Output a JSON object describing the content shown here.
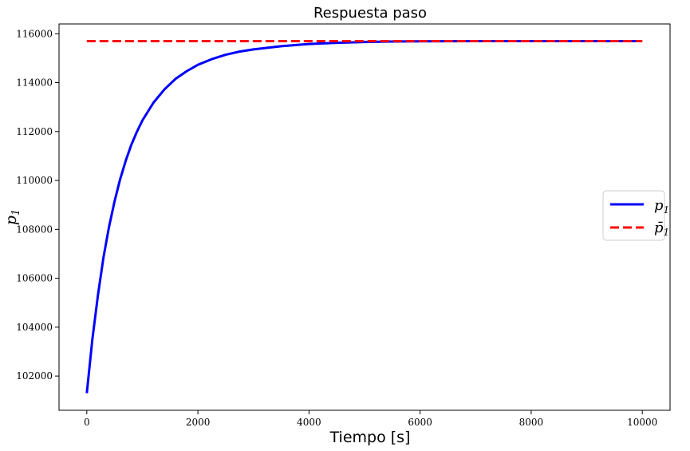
{
  "chart_data": {
    "type": "line",
    "title": "Respuesta paso",
    "xlabel": "Tiempo [s]",
    "ylabel": "p",
    "ylabel_sub": "1",
    "xlim": [
      -500,
      10500
    ],
    "ylim": [
      100600,
      116400
    ],
    "x_ticks": [
      0,
      2000,
      4000,
      6000,
      8000,
      10000
    ],
    "y_ticks": [
      102000,
      104000,
      106000,
      108000,
      110000,
      112000,
      114000,
      116000
    ],
    "legend_position": "center-right",
    "series": [
      {
        "name": "p",
        "name_sub": "1",
        "color": "#0000ff",
        "style": "solid",
        "x": [
          0,
          100,
          200,
          300,
          400,
          500,
          600,
          700,
          800,
          900,
          1000,
          1200,
          1400,
          1600,
          1800,
          2000,
          2250,
          2500,
          2750,
          3000,
          3500,
          4000,
          4500,
          5000,
          5500,
          6000,
          7000,
          8000,
          9000,
          10000
        ],
        "y": [
          101300,
          103500,
          105300,
          106850,
          108100,
          109150,
          110050,
          110800,
          111450,
          111980,
          112450,
          113180,
          113730,
          114160,
          114470,
          114730,
          114960,
          115140,
          115270,
          115360,
          115490,
          115580,
          115630,
          115660,
          115680,
          115690,
          115700,
          115700,
          115700,
          115700
        ]
      },
      {
        "name": "p̄",
        "name_sub": "1",
        "color": "#ff0000",
        "style": "dashed",
        "x": [
          0,
          10000
        ],
        "y": [
          115700,
          115700
        ]
      }
    ]
  }
}
